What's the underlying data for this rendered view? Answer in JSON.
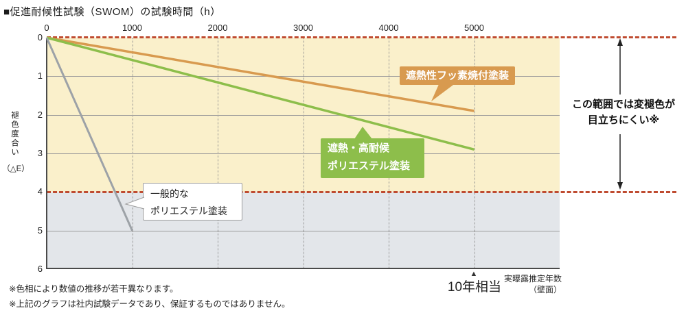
{
  "title": "■促進耐候性試験（SWOM）の試験時間（h）",
  "y_axis": {
    "label_vertical": "褪色度合い",
    "label_unit": "（△E）"
  },
  "callouts": {
    "fluorine": {
      "label": "遮熱性フッ素焼付塗装",
      "color": "#D89A4F"
    },
    "high_weather": {
      "line1": "遮熱・高耐候",
      "line2": "ポリエステル塗装",
      "color": "#8DBE4B"
    },
    "general": {
      "line1": "一般的な",
      "line2": "ポリエステル塗装"
    }
  },
  "annotation": {
    "line1": "この範囲では変褪色が",
    "line2": "目立ちにくい※"
  },
  "bottom": {
    "marker_symbol": "▲",
    "marker_label": "10年相当",
    "axis_note_line1": "実曝露推定年数",
    "axis_note_line2": "（壁面）"
  },
  "footnotes": [
    "※色相により数値の推移が若干異なります。",
    "※上記のグラフは社内試験データであり、保証するものではありません。"
  ],
  "colors": {
    "safe_band": "#FAF0CB",
    "lower_band": "#E3E6EA",
    "threshold_dash": "#BF4B30",
    "axis": "#4a4a4a"
  },
  "chart_data": {
    "type": "line",
    "title": "促進耐候性試験（SWOM）の試験時間（h）",
    "xlabel": "促進耐候性試験（SWOM）の試験時間（h）",
    "ylabel": "褪色度合い（△E）",
    "xlim": [
      0,
      6000
    ],
    "ylim": [
      0,
      6
    ],
    "y_inverted": true,
    "grid": true,
    "x_ticks": [
      0,
      1000,
      2000,
      3000,
      4000,
      5000
    ],
    "y_ticks": [
      0,
      1,
      2,
      3,
      4,
      5,
      6
    ],
    "y_gridlines": [
      1,
      2,
      3,
      5
    ],
    "series": [
      {
        "name": "遮熱性フッ素焼付塗装",
        "color": "#D89A4F",
        "width": 3.5,
        "points": [
          [
            0,
            0
          ],
          [
            5000,
            1.9
          ]
        ]
      },
      {
        "name": "遮熱・高耐候ポリエステル塗装",
        "color": "#8DBE4B",
        "width": 3.5,
        "points": [
          [
            0,
            0
          ],
          [
            5000,
            2.9
          ]
        ]
      },
      {
        "name": "一般的なポリエステル塗装",
        "color": "#9DA2A7",
        "width": 3,
        "points": [
          [
            0,
            0
          ],
          [
            1000,
            5.0
          ]
        ]
      }
    ],
    "bands": [
      {
        "from": 0,
        "to": 4,
        "color": "#FAF0CB",
        "note": "この範囲では変褪色が目立ちにくい※"
      },
      {
        "from": 4,
        "to": 6,
        "color": "#E3E6EA"
      }
    ],
    "threshold_lines": {
      "values": [
        0,
        4
      ],
      "style": "dashed",
      "color": "#BF4B30"
    },
    "x_marker": {
      "x": 5000,
      "label": "10年相当",
      "note": "実曝露推定年数（壁面）"
    }
  }
}
